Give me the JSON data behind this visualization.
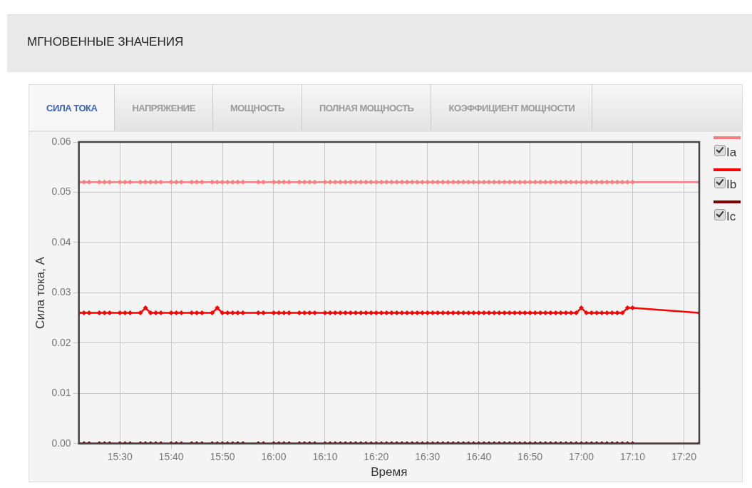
{
  "chart_data": {
    "type": "line",
    "title": "МГНОВЕННЫЕ ЗНАЧЕНИЯ",
    "annotations": [
      "СИЛА ТОКА",
      "НАПРЯЖЕНИЕ",
      "МОЩНОСТЬ",
      "ПОЛНАЯ МОЩНОСТЬ",
      "КОЭФФИЦИЕНТ МОЩНОСТИ"
    ],
    "xlabel": "Время",
    "ylabel": "Сила тока, А",
    "x": [
      15.3667,
      15.3833,
      15.4,
      15.4333,
      15.45,
      15.4667,
      15.5,
      15.5167,
      15.5333,
      15.5667,
      15.5833,
      15.6,
      15.6167,
      15.6333,
      15.6667,
      15.6833,
      15.7,
      15.7333,
      15.75,
      15.7667,
      15.8,
      15.8167,
      15.8333,
      15.85,
      15.8667,
      15.8833,
      15.9,
      15.95,
      15.9667,
      16,
      16.0167,
      16.0333,
      16.05,
      16.0833,
      16.1,
      16.1167,
      16.1333,
      16.1667,
      16.1833,
      16.2,
      16.2167,
      16.2333,
      16.25,
      16.2667,
      16.2833,
      16.3,
      16.3167,
      16.3333,
      16.35,
      16.3667,
      16.3833,
      16.4,
      16.4167,
      16.4333,
      16.45,
      16.4667,
      16.4833,
      16.5,
      16.5167,
      16.5333,
      16.55,
      16.5667,
      16.5833,
      16.6,
      16.6167,
      16.6333,
      16.65,
      16.6667,
      16.6833,
      16.7,
      16.7167,
      16.7333,
      16.75,
      16.7667,
      16.7833,
      16.8,
      16.8167,
      16.8333,
      16.85,
      16.8667,
      16.8833,
      16.9,
      16.9167,
      16.9333,
      16.95,
      16.9667,
      16.9833,
      17,
      17.0167,
      17.0333,
      17.05,
      17.0667,
      17.0833,
      17.1,
      17.1167,
      17.1333,
      17.15,
      17.1667,
      17.3833
    ],
    "series": [
      {
        "name": "Ia",
        "color": "#f87f7f",
        "values": [
          0.052,
          0.052,
          0.052,
          0.052,
          0.052,
          0.052,
          0.052,
          0.052,
          0.052,
          0.052,
          0.052,
          0.052,
          0.052,
          0.052,
          0.052,
          0.052,
          0.052,
          0.052,
          0.052,
          0.052,
          0.052,
          0.052,
          0.052,
          0.052,
          0.052,
          0.052,
          0.052,
          0.052,
          0.052,
          0.052,
          0.052,
          0.052,
          0.052,
          0.052,
          0.052,
          0.052,
          0.052,
          0.052,
          0.052,
          0.052,
          0.052,
          0.052,
          0.052,
          0.052,
          0.052,
          0.052,
          0.052,
          0.052,
          0.052,
          0.052,
          0.052,
          0.052,
          0.052,
          0.052,
          0.052,
          0.052,
          0.052,
          0.052,
          0.052,
          0.052,
          0.052,
          0.052,
          0.052,
          0.052,
          0.052,
          0.052,
          0.052,
          0.052,
          0.052,
          0.052,
          0.052,
          0.052,
          0.052,
          0.052,
          0.052,
          0.052,
          0.052,
          0.052,
          0.052,
          0.052,
          0.052,
          0.052,
          0.052,
          0.052,
          0.052,
          0.052,
          0.052,
          0.052,
          0.052,
          0.052,
          0.052,
          0.052,
          0.052,
          0.052,
          0.052,
          0.052,
          0.052,
          0.052,
          0.052
        ]
      },
      {
        "name": "Ib",
        "color": "#ff0000",
        "values": [
          0.026,
          0.026,
          0.026,
          0.026,
          0.026,
          0.026,
          0.026,
          0.026,
          0.026,
          0.026,
          0.027,
          0.026,
          0.026,
          0.026,
          0.026,
          0.026,
          0.026,
          0.026,
          0.026,
          0.026,
          0.026,
          0.027,
          0.026,
          0.026,
          0.026,
          0.026,
          0.026,
          0.026,
          0.026,
          0.026,
          0.026,
          0.026,
          0.026,
          0.026,
          0.026,
          0.026,
          0.026,
          0.026,
          0.026,
          0.026,
          0.026,
          0.026,
          0.026,
          0.026,
          0.026,
          0.026,
          0.026,
          0.026,
          0.026,
          0.026,
          0.026,
          0.026,
          0.026,
          0.026,
          0.026,
          0.026,
          0.026,
          0.026,
          0.026,
          0.026,
          0.026,
          0.026,
          0.026,
          0.026,
          0.026,
          0.026,
          0.026,
          0.026,
          0.026,
          0.026,
          0.026,
          0.026,
          0.026,
          0.026,
          0.026,
          0.026,
          0.026,
          0.026,
          0.026,
          0.026,
          0.026,
          0.026,
          0.026,
          0.026,
          0.026,
          0.026,
          0.026,
          0.027,
          0.026,
          0.026,
          0.026,
          0.026,
          0.026,
          0.026,
          0.026,
          0.026,
          0.027,
          0.027,
          0.026
        ]
      },
      {
        "name": "Ic",
        "color": "#7f0000",
        "values": [
          0,
          0,
          0,
          0,
          0,
          0,
          0,
          0,
          0,
          0,
          0,
          0,
          0,
          0,
          0,
          0,
          0,
          0,
          0,
          0,
          0,
          0,
          0,
          0,
          0,
          0,
          0,
          0,
          0,
          0,
          0,
          0,
          0,
          0,
          0,
          0,
          0,
          0,
          0,
          0,
          0,
          0,
          0,
          0,
          0,
          0,
          0,
          0,
          0,
          0,
          0,
          0,
          0,
          0,
          0,
          0,
          0,
          0,
          0,
          0,
          0,
          0,
          0,
          0,
          0,
          0,
          0,
          0,
          0,
          0,
          0,
          0,
          0,
          0,
          0,
          0,
          0,
          0,
          0,
          0,
          0,
          0,
          0,
          0,
          0,
          0,
          0,
          0,
          0,
          0,
          0,
          0,
          0,
          0,
          0,
          0,
          0,
          0,
          0
        ]
      }
    ],
    "xlim": [
      15.3667,
      17.3833
    ],
    "xticks": [
      {
        "value": 15.5,
        "label": "15:30"
      },
      {
        "value": 15.6667,
        "label": "15:40"
      },
      {
        "value": 15.8333,
        "label": "15:50"
      },
      {
        "value": 16,
        "label": "16:00"
      },
      {
        "value": 16.1667,
        "label": "16:10"
      },
      {
        "value": 16.3333,
        "label": "16:20"
      },
      {
        "value": 16.5,
        "label": "16:30"
      },
      {
        "value": 16.6667,
        "label": "16:40"
      },
      {
        "value": 16.8333,
        "label": "16:50"
      },
      {
        "value": 17,
        "label": "17:00"
      },
      {
        "value": 17.1667,
        "label": "17:10"
      },
      {
        "value": 17.3333,
        "label": "17:20"
      }
    ],
    "ylim": [
      0,
      0.06
    ],
    "yticks": [
      {
        "value": 0,
        "label": "0.00"
      },
      {
        "value": 0.01,
        "label": "0.01"
      },
      {
        "value": 0.02,
        "label": "0.02"
      },
      {
        "value": 0.03,
        "label": "0.03"
      },
      {
        "value": 0.04,
        "label": "0.04"
      },
      {
        "value": 0.05,
        "label": "0.05"
      },
      {
        "value": 0.06,
        "label": "0.06"
      }
    ],
    "grid": true,
    "legend": "right",
    "marker": "diamond",
    "line_style": "solid"
  }
}
